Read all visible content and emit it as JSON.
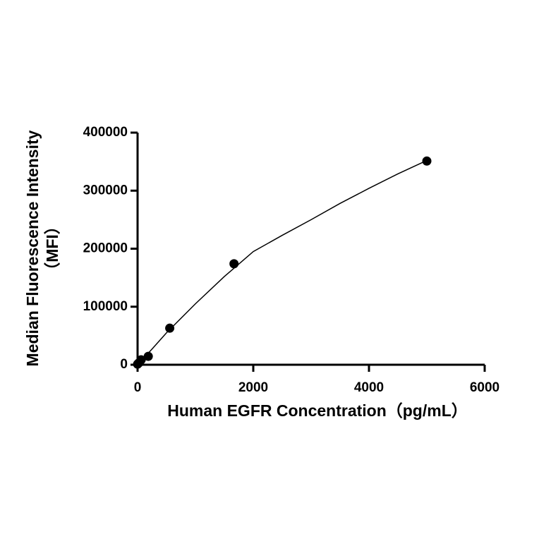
{
  "chart_data": {
    "type": "scatter",
    "xlabel": "Human EGFR Concentration（pg/mL）",
    "ylabel": [
      "Median Fluorescence Intensity",
      "（MFI）"
    ],
    "x": [
      0,
      20.6,
      61.7,
      185,
      556,
      1667,
      5000
    ],
    "series": [
      {
        "kind": "points",
        "color": "#000000",
        "values": [
          1000,
          3000,
          8500,
          14500,
          63000,
          174000,
          351000
        ]
      },
      {
        "kind": "curve",
        "color": "#000000",
        "x": [
          0,
          250,
          500,
          1000,
          1500,
          2000,
          2500,
          3000,
          3500,
          4000,
          4500,
          5000
        ],
        "values": [
          0,
          27000,
          55000,
          105000,
          152000,
          195000,
          223000,
          250000,
          278000,
          304000,
          329000,
          352000
        ]
      }
    ],
    "xlim": [
      0,
      6000
    ],
    "xticks": [
      0,
      2000,
      4000,
      6000
    ],
    "ylim": [
      0,
      400000
    ],
    "yticks": [
      0,
      100000,
      200000,
      300000,
      400000
    ]
  }
}
